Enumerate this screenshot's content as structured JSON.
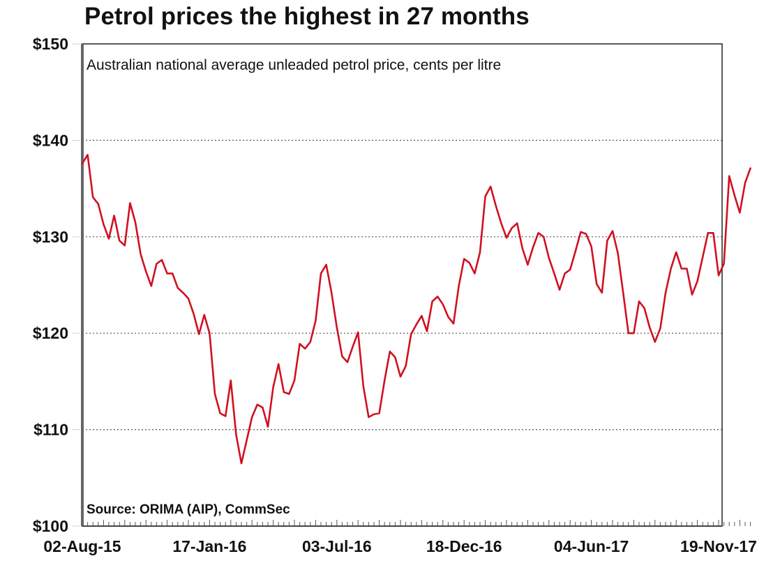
{
  "chart_data": {
    "type": "line",
    "title": "Petrol prices the highest in 27 months",
    "subtitle": "Australian national average unleaded petrol price, cents per litre",
    "source": "Source: ORIMA (AIP), CommSec",
    "xlabel": "",
    "ylabel": "",
    "ylim": [
      100,
      150
    ],
    "yticks": [
      100,
      110,
      120,
      130,
      140,
      150
    ],
    "ytick_labels": [
      "$100",
      "$110",
      "$120",
      "$130",
      "$140",
      "$150"
    ],
    "xtick_labels": [
      "02-Aug-15",
      "17-Jan-16",
      "03-Jul-16",
      "18-Dec-16",
      "04-Jun-17",
      "19-Nov-17"
    ],
    "xtick_week_index": [
      0,
      24,
      48,
      72,
      96,
      120
    ],
    "x_frequency": "weekly",
    "grid": "horizontal dotted",
    "series": [
      {
        "name": "Unleaded petrol price",
        "color": "#d01020",
        "values": [
          137.6,
          138.5,
          134.1,
          133.4,
          131.3,
          129.8,
          132.2,
          129.6,
          129.1,
          133.5,
          131.5,
          128.2,
          126.4,
          124.9,
          127.2,
          127.6,
          126.2,
          126.2,
          124.7,
          124.2,
          123.6,
          122.0,
          119.9,
          121.9,
          120.0,
          113.7,
          111.7,
          111.4,
          115.1,
          109.5,
          106.5,
          108.9,
          111.3,
          112.6,
          112.3,
          110.3,
          114.4,
          116.8,
          113.9,
          113.7,
          115.1,
          118.9,
          118.4,
          119.1,
          121.3,
          126.2,
          127.1,
          124.2,
          120.6,
          117.6,
          117.0,
          118.6,
          120.1,
          114.5,
          111.3,
          111.6,
          111.7,
          115.1,
          118.1,
          117.5,
          115.5,
          116.6,
          119.9,
          120.9,
          121.8,
          120.2,
          123.3,
          123.8,
          123.0,
          121.7,
          121.0,
          124.9,
          127.7,
          127.3,
          126.2,
          128.4,
          134.2,
          135.2,
          133.2,
          131.4,
          129.9,
          130.9,
          131.4,
          128.8,
          127.1,
          128.9,
          130.4,
          130.0,
          127.8,
          126.2,
          124.5,
          126.2,
          126.6,
          128.5,
          130.5,
          130.3,
          129.0,
          125.1,
          124.2,
          129.6,
          130.6,
          128.3,
          124.2,
          120.0,
          120.0,
          123.3,
          122.6,
          120.6,
          119.1,
          120.5,
          124.2,
          126.7,
          128.4,
          126.7,
          126.7,
          124.0,
          125.4,
          127.9,
          130.4,
          130.4,
          126.0,
          127.2,
          136.3,
          134.3,
          132.5,
          135.6,
          137.1
        ]
      }
    ]
  }
}
